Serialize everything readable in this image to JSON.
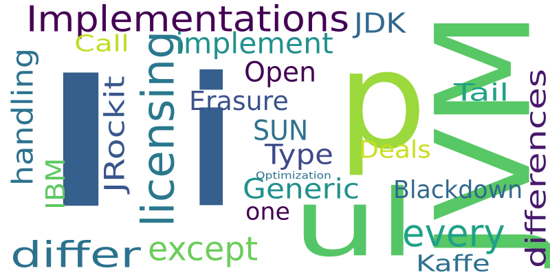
{
  "words": [
    {
      "id": "w-l",
      "text": "l",
      "color": "#355f8d"
    },
    {
      "id": "w-i",
      "text": "i",
      "color": "#355f8d"
    },
    {
      "id": "w-p",
      "text": "p",
      "color": "#9bd93c"
    },
    {
      "id": "w-ul",
      "text": "ul",
      "color": "#55c667"
    },
    {
      "id": "w-jvm",
      "text": "JVM",
      "color": "#58c765"
    },
    {
      "id": "w-implementations",
      "text": "Implementations",
      "color": "#440154"
    },
    {
      "id": "w-licensing",
      "text": "licensing",
      "color": "#2a788e"
    },
    {
      "id": "w-differ",
      "text": "differ",
      "color": "#2c728e"
    },
    {
      "id": "w-except",
      "text": "except",
      "color": "#6ccd5a"
    },
    {
      "id": "w-every",
      "text": "every",
      "color": "#1fa187"
    },
    {
      "id": "w-differences",
      "text": "differences",
      "color": "#481a6c"
    },
    {
      "id": "w-implement",
      "text": "implement",
      "color": "#21918c"
    },
    {
      "id": "w-handling",
      "text": "handling",
      "color": "#2c728e"
    },
    {
      "id": "w-erasure",
      "text": "Erasure",
      "color": "#3b528b"
    },
    {
      "id": "w-sun",
      "text": "SUN",
      "color": "#2c728e"
    },
    {
      "id": "w-type",
      "text": "Type",
      "color": "#3e4989"
    },
    {
      "id": "w-generic",
      "text": "Generic",
      "color": "#21918c"
    },
    {
      "id": "w-jrockit",
      "text": "JRockit",
      "color": "#39568c"
    },
    {
      "id": "w-blackdown",
      "text": "Blackdown",
      "color": "#31688e"
    },
    {
      "id": "w-open",
      "text": "Open",
      "color": "#440154"
    },
    {
      "id": "w-jdk",
      "text": "JDK",
      "color": "#31688e"
    },
    {
      "id": "w-ibm",
      "text": "IBM",
      "color": "#5ec962"
    },
    {
      "id": "w-call",
      "text": "Call",
      "color": "#bddf26"
    },
    {
      "id": "w-deals",
      "text": "Deals",
      "color": "#c8e020"
    },
    {
      "id": "w-tail",
      "text": "Tail",
      "color": "#20a386"
    },
    {
      "id": "w-one",
      "text": "one",
      "color": "#440154"
    },
    {
      "id": "w-kaffe",
      "text": "Kaffe",
      "color": "#2d708e"
    },
    {
      "id": "w-optimization",
      "text": "Optimization",
      "color": "#2c728e"
    }
  ]
}
